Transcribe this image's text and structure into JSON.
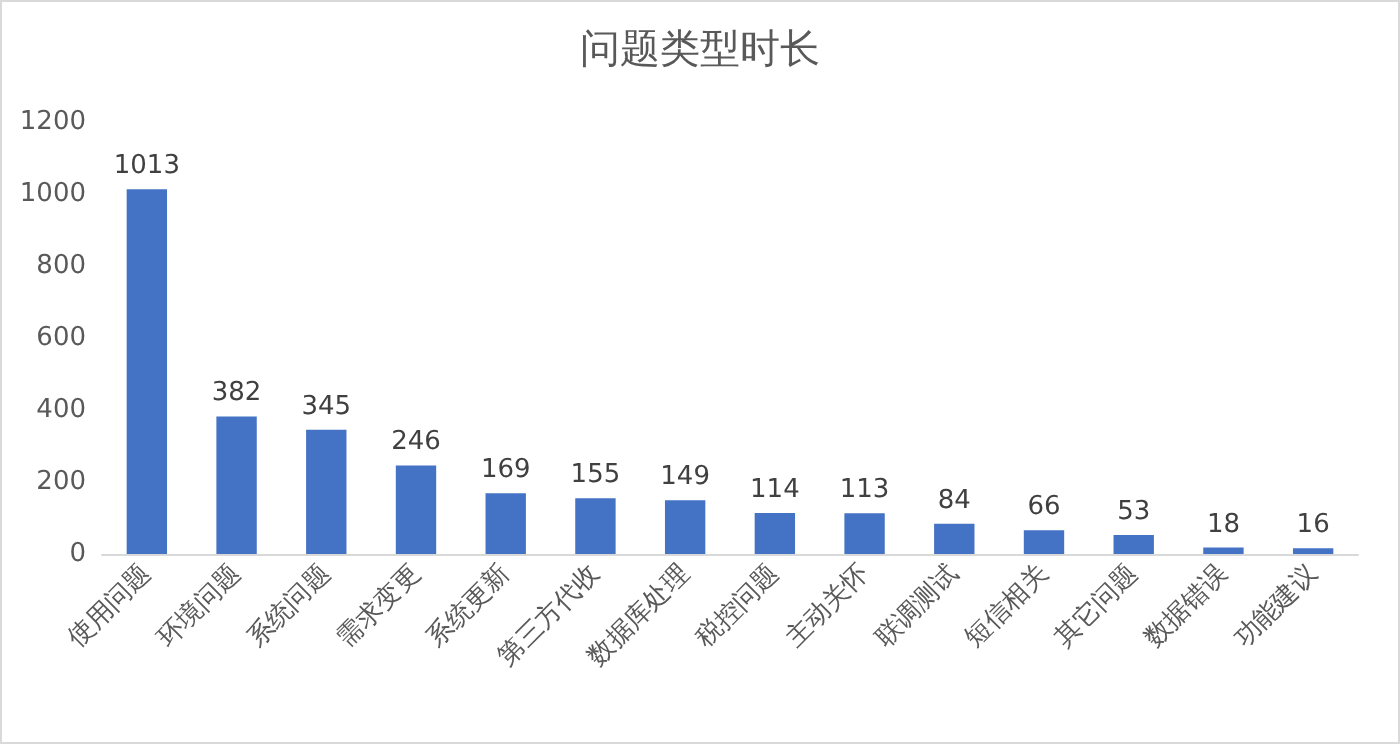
{
  "chart_data": {
    "type": "bar",
    "title": "问题类型时长",
    "categories": [
      "使用问题",
      "环境问题",
      "系统问题",
      "需求变更",
      "系统更新",
      "第三方代收",
      "数据库处理",
      "税控问题",
      "主动关怀",
      "联调测试",
      "短信相关",
      "其它问题",
      "数据错误",
      "功能建议"
    ],
    "values": [
      1013,
      382,
      345,
      246,
      169,
      155,
      149,
      114,
      113,
      84,
      66,
      53,
      18,
      16
    ],
    "color": "#4472c4",
    "ylim": [
      0,
      1200
    ],
    "yticks": [
      0,
      200,
      400,
      600,
      800,
      1000,
      1200
    ],
    "grid": false,
    "data_labels": true
  }
}
